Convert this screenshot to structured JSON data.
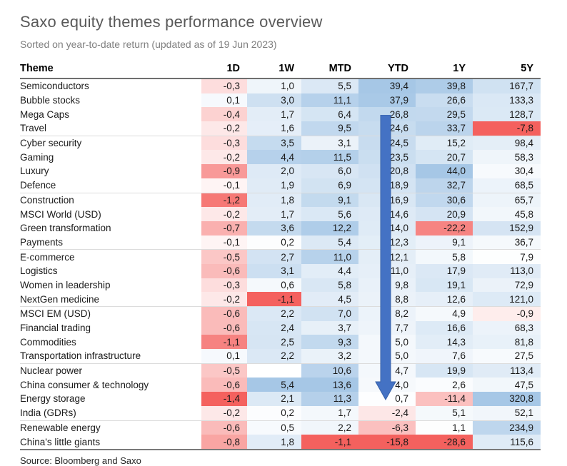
{
  "title": "Saxo equity themes performance overview",
  "subtitle": "Sorted on year-to-date return (updated as of 19 Jun 2023)",
  "source": "Source: Bloomberg and Saxo",
  "chart_data": {
    "type": "heatmap",
    "title": "Saxo equity themes performance overview",
    "subtitle": "Sorted on year-to-date return (updated as of 19 Jun 2023)",
    "columns": [
      "Theme",
      "1D",
      "1W",
      "MTD",
      "YTD",
      "1Y",
      "5Y"
    ],
    "rows": [
      {
        "theme": "Semiconductors",
        "values": [
          "-0,3",
          "1,0",
          "5,5",
          "39,4",
          "39,8",
          "167,7"
        ]
      },
      {
        "theme": "Bubble stocks",
        "values": [
          "0,1",
          "3,0",
          "11,1",
          "37,9",
          "26,6",
          "133,3"
        ]
      },
      {
        "theme": "Mega Caps",
        "values": [
          "-0,4",
          "1,7",
          "6,4",
          "26,8",
          "29,5",
          "128,7"
        ]
      },
      {
        "theme": "Travel",
        "values": [
          "-0,2",
          "1,6",
          "9,5",
          "24,6",
          "33,7",
          "-7,8"
        ]
      },
      {
        "theme": "Cyber security",
        "values": [
          "-0,3",
          "3,5",
          "3,1",
          "24,5",
          "15,2",
          "98,4"
        ]
      },
      {
        "theme": "Gaming",
        "values": [
          "-0,2",
          "4,4",
          "11,5",
          "23,5",
          "20,7",
          "58,3"
        ]
      },
      {
        "theme": "Luxury",
        "values": [
          "-0,9",
          "2,0",
          "6,0",
          "20,8",
          "44,0",
          "30,4"
        ]
      },
      {
        "theme": "Defence",
        "values": [
          "-0,1",
          "1,9",
          "6,9",
          "18,9",
          "32,7",
          "68,5"
        ]
      },
      {
        "theme": "Construction",
        "values": [
          "-1,2",
          "1,8",
          "9,1",
          "16,9",
          "30,6",
          "65,7"
        ]
      },
      {
        "theme": "MSCI World (USD)",
        "values": [
          "-0,2",
          "1,7",
          "5,6",
          "14,6",
          "20,9",
          "45,8"
        ]
      },
      {
        "theme": "Green transformation",
        "values": [
          "-0,7",
          "3,6",
          "12,2",
          "14,0",
          "-22,2",
          "152,9"
        ]
      },
      {
        "theme": "Payments",
        "values": [
          "-0,1",
          "0,2",
          "5,4",
          "12,3",
          "9,1",
          "36,7"
        ]
      },
      {
        "theme": "E-commerce",
        "values": [
          "-0,5",
          "2,7",
          "11,0",
          "12,1",
          "5,8",
          "7,9"
        ]
      },
      {
        "theme": "Logistics",
        "values": [
          "-0,6",
          "3,1",
          "4,4",
          "11,0",
          "17,9",
          "113,0"
        ]
      },
      {
        "theme": "Women in leadership",
        "values": [
          "-0,3",
          "0,6",
          "5,8",
          "9,8",
          "19,1",
          "72,9"
        ]
      },
      {
        "theme": "NextGen medicine",
        "values": [
          "-0,2",
          "-1,1",
          "4,5",
          "8,8",
          "12,6",
          "121,0"
        ]
      },
      {
        "theme": "MSCI EM (USD)",
        "values": [
          "-0,6",
          "2,2",
          "7,0",
          "8,2",
          "4,9",
          "-0,9"
        ]
      },
      {
        "theme": "Financial trading",
        "values": [
          "-0,6",
          "2,4",
          "3,7",
          "7,7",
          "16,6",
          "68,3"
        ]
      },
      {
        "theme": "Commodities",
        "values": [
          "-1,1",
          "2,5",
          "9,3",
          "5,0",
          "14,3",
          "81,8"
        ]
      },
      {
        "theme": "Transportation infrastructure",
        "values": [
          "0,1",
          "2,2",
          "3,2",
          "5,0",
          "7,6",
          "27,5"
        ]
      },
      {
        "theme": "Nuclear power",
        "values": [
          "-0,5",
          "",
          "10,6",
          "4,7",
          "19,9",
          "113,4"
        ]
      },
      {
        "theme": "China consumer & technology",
        "values": [
          "-0,6",
          "5,4",
          "13,6",
          "4,0",
          "2,6",
          "47,5"
        ]
      },
      {
        "theme": "Energy storage",
        "values": [
          "-1,4",
          "2,1",
          "11,3",
          "0,7",
          "-11,4",
          "320,8"
        ]
      },
      {
        "theme": "India (GDRs)",
        "values": [
          "-0,2",
          "0,2",
          "1,7",
          "-2,4",
          "5,1",
          "52,1"
        ]
      },
      {
        "theme": "Renewable energy",
        "values": [
          "-0,6",
          "0,5",
          "2,2",
          "-6,3",
          "1,1",
          "234,9"
        ]
      },
      {
        "theme": "China's little giants",
        "values": [
          "-0,8",
          "1,8",
          "-1,1",
          "-15,8",
          "-28,6",
          "115,6"
        ]
      }
    ],
    "color_scale": {
      "negative_max": "#f4615e",
      "zero": "#ffffff",
      "positive_max": "#a6c7e6",
      "normalization": "per-column"
    },
    "annotation": {
      "shape": "down-arrow",
      "column": "YTD",
      "color": "#4472c4"
    }
  }
}
